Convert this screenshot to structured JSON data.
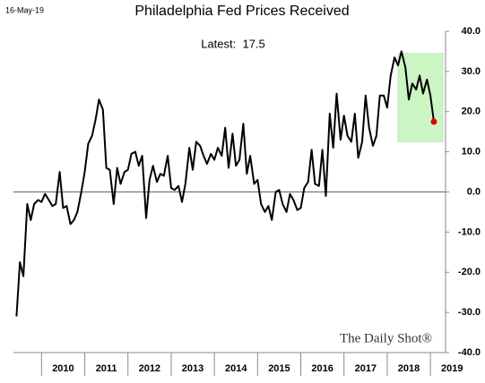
{
  "chart_data": {
    "type": "line",
    "title": "Philadelphia Fed Prices Received",
    "date": "16-May-19",
    "annotation": "Latest:  17.5",
    "watermark": "The Daily Shot®",
    "x": [
      2009.42,
      2009.5,
      2009.58,
      2009.67,
      2009.75,
      2009.83,
      2009.92,
      2010.0,
      2010.08,
      2010.17,
      2010.25,
      2010.33,
      2010.42,
      2010.5,
      2010.58,
      2010.67,
      2010.75,
      2010.83,
      2010.92,
      2011.0,
      2011.08,
      2011.17,
      2011.25,
      2011.33,
      2011.42,
      2011.5,
      2011.58,
      2011.67,
      2011.75,
      2011.83,
      2011.92,
      2012.0,
      2012.08,
      2012.17,
      2012.25,
      2012.33,
      2012.42,
      2012.5,
      2012.58,
      2012.67,
      2012.75,
      2012.83,
      2012.92,
      2013.0,
      2013.08,
      2013.17,
      2013.25,
      2013.33,
      2013.42,
      2013.5,
      2013.58,
      2013.67,
      2013.75,
      2013.83,
      2013.92,
      2014.0,
      2014.08,
      2014.17,
      2014.25,
      2014.33,
      2014.42,
      2014.5,
      2014.58,
      2014.67,
      2014.75,
      2014.83,
      2014.92,
      2015.0,
      2015.08,
      2015.17,
      2015.25,
      2015.33,
      2015.42,
      2015.5,
      2015.58,
      2015.67,
      2015.75,
      2015.83,
      2015.92,
      2016.0,
      2016.08,
      2016.17,
      2016.25,
      2016.33,
      2016.42,
      2016.5,
      2016.58,
      2016.67,
      2016.75,
      2016.83,
      2016.92,
      2017.0,
      2017.08,
      2017.17,
      2017.25,
      2017.33,
      2017.42,
      2017.5,
      2017.58,
      2017.67,
      2017.75,
      2017.83,
      2017.92,
      2018.0,
      2018.08,
      2018.17,
      2018.25,
      2018.33,
      2018.42,
      2018.5,
      2018.58,
      2018.67,
      2018.75,
      2018.83,
      2018.92,
      2019.0,
      2019.08
    ],
    "series": [
      {
        "name": "Prices Received",
        "color": "#000000",
        "values": [
          -31,
          -17.5,
          -21,
          -3,
          -7,
          -3,
          -2,
          -2.5,
          -0.5,
          -2,
          -3.5,
          -3,
          5,
          -4,
          -3.5,
          -8,
          -7,
          -5,
          0,
          5,
          12,
          14,
          18,
          23,
          20.5,
          6,
          5.5,
          -3,
          6,
          2,
          5,
          5.5,
          9.5,
          10,
          6.5,
          9,
          -6.5,
          3,
          6.5,
          2.5,
          4.5,
          4,
          9,
          1,
          0.5,
          1.5,
          -2.5,
          2,
          11,
          5.5,
          12.5,
          11.5,
          9,
          7,
          9.5,
          8,
          11,
          9,
          16,
          6,
          14.5,
          6.5,
          8,
          17,
          4.5,
          9,
          2,
          3,
          -3,
          -5,
          -3.5,
          -7,
          0,
          0.5,
          -3,
          -5,
          -0.5,
          -2,
          -4.5,
          -4,
          1,
          2.5,
          10.5,
          2,
          1.5,
          10.5,
          -1,
          19.5,
          11,
          24.5,
          13,
          19,
          14,
          12.5,
          19.5,
          8.5,
          12.5,
          24,
          16,
          11.5,
          14,
          24,
          24,
          21,
          29,
          33.5,
          31.5,
          35,
          31,
          23,
          27,
          25.5,
          29,
          24.5,
          28,
          24,
          17.5
        ]
      }
    ],
    "latest_color": "#dd0000",
    "highlight_box": {
      "xlim": [
        2018.25,
        2019.29
      ],
      "ylim": [
        12.5,
        34.5
      ],
      "color": "#ccf5c4"
    },
    "xlim": [
      2009.35,
      2019.35
    ],
    "xticks": [
      {
        "value": 2010.5,
        "label": "2010"
      },
      {
        "value": 2011.5,
        "label": "2011"
      },
      {
        "value": 2012.5,
        "label": "2012"
      },
      {
        "value": 2013.5,
        "label": "2013"
      },
      {
        "value": 2014.5,
        "label": "2014"
      },
      {
        "value": 2015.5,
        "label": "2015"
      },
      {
        "value": 2016.5,
        "label": "2016"
      },
      {
        "value": 2017.5,
        "label": "2017"
      },
      {
        "value": 2018.5,
        "label": "2018"
      },
      {
        "value": 2019.5,
        "label": "2019"
      }
    ],
    "ylim": [
      -40,
      40
    ],
    "yticks": [
      {
        "value": 40,
        "label": "40.0"
      },
      {
        "value": 30,
        "label": "30.0"
      },
      {
        "value": 20,
        "label": "20.0"
      },
      {
        "value": 10,
        "label": "10.0"
      },
      {
        "value": 0,
        "label": "0.0"
      },
      {
        "value": -10,
        "label": "-10.0"
      },
      {
        "value": -20,
        "label": "-20.0"
      },
      {
        "value": -30,
        "label": "-30.0"
      },
      {
        "value": -40,
        "label": "-40.0"
      }
    ],
    "grid": false,
    "zero_line": true
  }
}
